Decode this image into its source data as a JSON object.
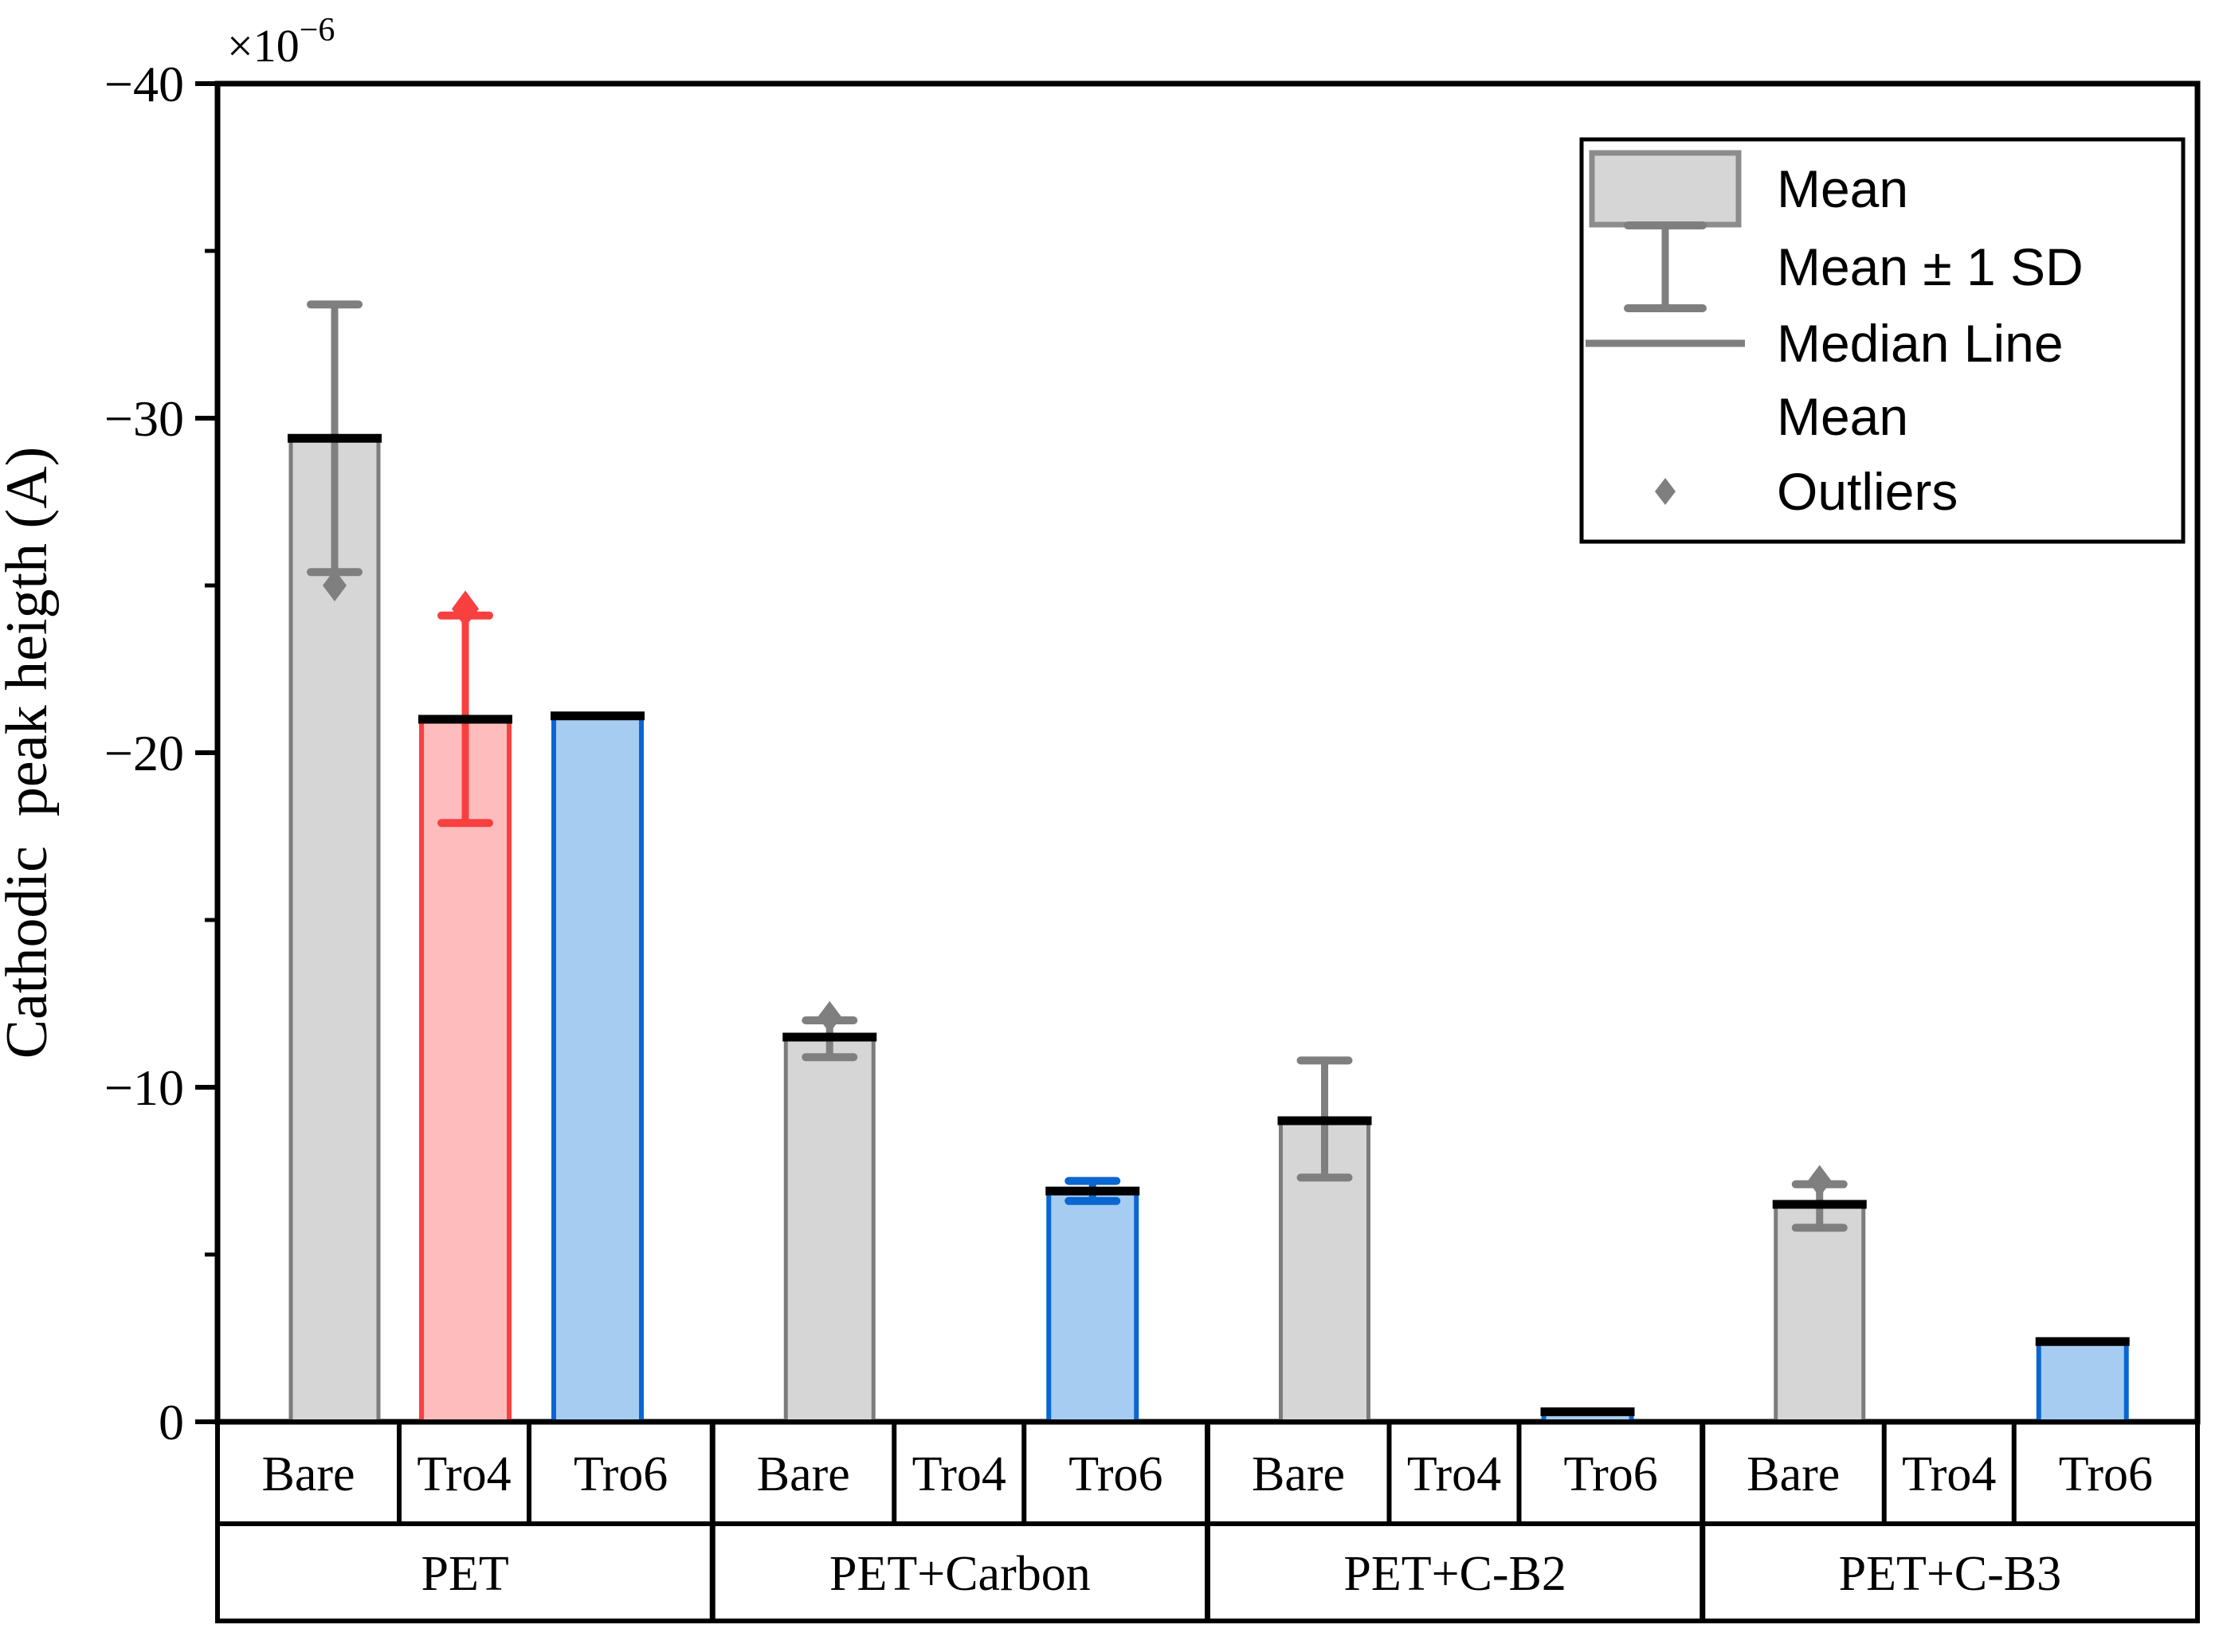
{
  "y_axis": {
    "title": "Cathodic  peak heigth (A)",
    "multiplier_base": "×10",
    "multiplier_exponent": "−6",
    "major_tick_labels": [
      "−40",
      "−30",
      "−20",
      "−10",
      "0"
    ],
    "major_tick_values": [
      -40,
      -30,
      -20,
      -10,
      0
    ],
    "minor_tick_values": [
      -35,
      -25,
      -15,
      -5
    ]
  },
  "x_axis": {
    "category_labels": [
      "Bare",
      "Tro4",
      "Tro6"
    ],
    "group_labels": [
      "PET",
      "PET+Carbon",
      "PET+C-B2",
      "PET+C-B3"
    ]
  },
  "legend": {
    "entries": [
      {
        "symbol": "box",
        "label": "Mean"
      },
      {
        "symbol": "errorbar",
        "label": "Mean ± 1 SD"
      },
      {
        "symbol": "line",
        "label": "Median Line"
      },
      {
        "symbol": "none",
        "label": "Mean"
      },
      {
        "symbol": "diamond",
        "label": "Outliers"
      }
    ]
  },
  "chart_data": {
    "type": "bar",
    "title": "",
    "xlabel": "",
    "ylabel": "Cathodic  peak heigth (A)",
    "y_unit_multiplier": "×10⁻⁶",
    "ylim": [
      -40,
      0
    ],
    "y_axis_inverted": true,
    "grid": false,
    "legend_position": "top-right",
    "groups": [
      "PET",
      "PET+Carbon",
      "PET+C-B2",
      "PET+C-B3"
    ],
    "categories": [
      "Bare",
      "Tro4",
      "Tro6"
    ],
    "bars": [
      {
        "group": "PET",
        "category": "Bare",
        "mean": -29.4,
        "sd_high": -33.4,
        "sd_low": -25.4,
        "outlier": -25.0,
        "style": "gray"
      },
      {
        "group": "PET",
        "category": "Tro4",
        "mean": -21.0,
        "sd_high": -24.1,
        "sd_low": -17.9,
        "outlier": -24.3,
        "style": "red"
      },
      {
        "group": "PET",
        "category": "Tro6",
        "mean": -21.1,
        "sd_high": null,
        "sd_low": null,
        "outlier": null,
        "style": "blue"
      },
      {
        "group": "PET+Carbon",
        "category": "Bare",
        "mean": -11.5,
        "sd_high": -12.0,
        "sd_low": -10.9,
        "outlier": -12.1,
        "style": "gray"
      },
      {
        "group": "PET+Carbon",
        "category": "Tro4",
        "mean": 0,
        "sd_high": null,
        "sd_low": null,
        "outlier": null,
        "style": "none"
      },
      {
        "group": "PET+Carbon",
        "category": "Tro6",
        "mean": -6.9,
        "sd_high": -7.2,
        "sd_low": -6.6,
        "outlier": null,
        "style": "blue"
      },
      {
        "group": "PET+C-B2",
        "category": "Bare",
        "mean": -9.0,
        "sd_high": -10.8,
        "sd_low": -7.3,
        "outlier": null,
        "style": "gray"
      },
      {
        "group": "PET+C-B2",
        "category": "Tro4",
        "mean": 0,
        "sd_high": null,
        "sd_low": null,
        "outlier": null,
        "style": "none"
      },
      {
        "group": "PET+C-B2",
        "category": "Tro6",
        "mean": -0.3,
        "sd_high": null,
        "sd_low": null,
        "outlier": null,
        "style": "blue"
      },
      {
        "group": "PET+C-B3",
        "category": "Bare",
        "mean": -6.5,
        "sd_high": -7.1,
        "sd_low": -5.8,
        "outlier": -7.2,
        "style": "gray"
      },
      {
        "group": "PET+C-B3",
        "category": "Tro4",
        "mean": 0,
        "sd_high": null,
        "sd_low": null,
        "outlier": null,
        "style": "none"
      },
      {
        "group": "PET+C-B3",
        "category": "Tro6",
        "mean": -2.4,
        "sd_high": null,
        "sd_low": null,
        "outlier": null,
        "style": "blue"
      }
    ],
    "colors": {
      "gray_fill": "#D6D6D6",
      "gray_edge": "#7C7C7C",
      "red_fill": "#FFBCBC",
      "red_edge": "#F84040",
      "blue_fill": "#A6CCF2",
      "blue_edge": "#0A66D0",
      "mean_line": "#000000",
      "errorbar_gray": "#7F7F7F",
      "axis": "#000000",
      "background": "#FFFFFF"
    }
  }
}
